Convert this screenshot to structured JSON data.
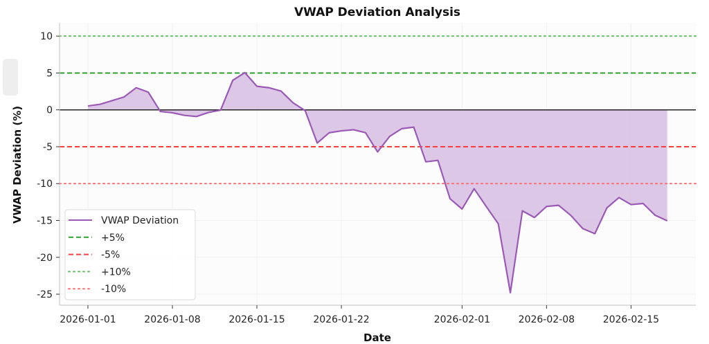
{
  "chart_data": {
    "type": "area",
    "title": "VWAP Deviation Analysis",
    "xlabel": "Date",
    "ylabel": "VWAP Deviation (%)",
    "start_date": "2026-01-01",
    "x_tick_labels": [
      "2026-01-01",
      "2026-01-08",
      "2026-01-15",
      "2026-01-22",
      "2026-02-01",
      "2026-02-08",
      "2026-02-15"
    ],
    "x_tick_day_offsets": [
      0,
      7,
      14,
      21,
      31,
      38,
      45
    ],
    "xlim_days": [
      -2.35,
      50.37
    ],
    "ylim": [
      -26.5,
      11.8
    ],
    "y_ticks": [
      10,
      5,
      0,
      -5,
      -10,
      -15,
      -20,
      -25
    ],
    "y_tick_labels": [
      "10",
      "5",
      "0",
      "-5",
      "-10",
      "-15",
      "-20",
      "-25"
    ],
    "grid": true,
    "legend_position": "lower-left",
    "series": [
      {
        "name": "VWAP Deviation",
        "color": "#9b59b6",
        "fill_color": "#d7bde2",
        "values": [
          0.53,
          0.75,
          1.25,
          1.75,
          3.0,
          2.4,
          -0.22,
          -0.4,
          -0.75,
          -0.9,
          -0.35,
          -0.03,
          4.0,
          5.05,
          3.2,
          3.0,
          2.55,
          0.95,
          -0.1,
          -4.5,
          -3.1,
          -2.85,
          -2.7,
          -3.1,
          -5.7,
          -3.6,
          -2.55,
          -2.35,
          -7.05,
          -6.85,
          -12.05,
          -13.45,
          -10.7,
          -13.1,
          -15.45,
          -24.8,
          -13.7,
          -14.6,
          -13.1,
          -12.95,
          -14.3,
          -16.1,
          -16.8,
          -13.3,
          -11.9,
          -12.85,
          -12.7,
          -14.3,
          -15.05
        ]
      }
    ],
    "reference_lines": [
      {
        "name": "+5%",
        "value": 5,
        "color": "#2ca02c",
        "style": "dashed"
      },
      {
        "name": "-5%",
        "value": -5,
        "color": "#ff3b3b",
        "style": "dashed"
      },
      {
        "name": "+10%",
        "value": 10,
        "color": "#5cbf5c",
        "style": "dotted"
      },
      {
        "name": "-10%",
        "value": -10,
        "color": "#ff6b6b",
        "style": "dotted"
      }
    ],
    "zero_line_color": "#222222",
    "legend": [
      "VWAP Deviation",
      "+5%",
      "-5%",
      "+10%",
      "-10%"
    ]
  }
}
